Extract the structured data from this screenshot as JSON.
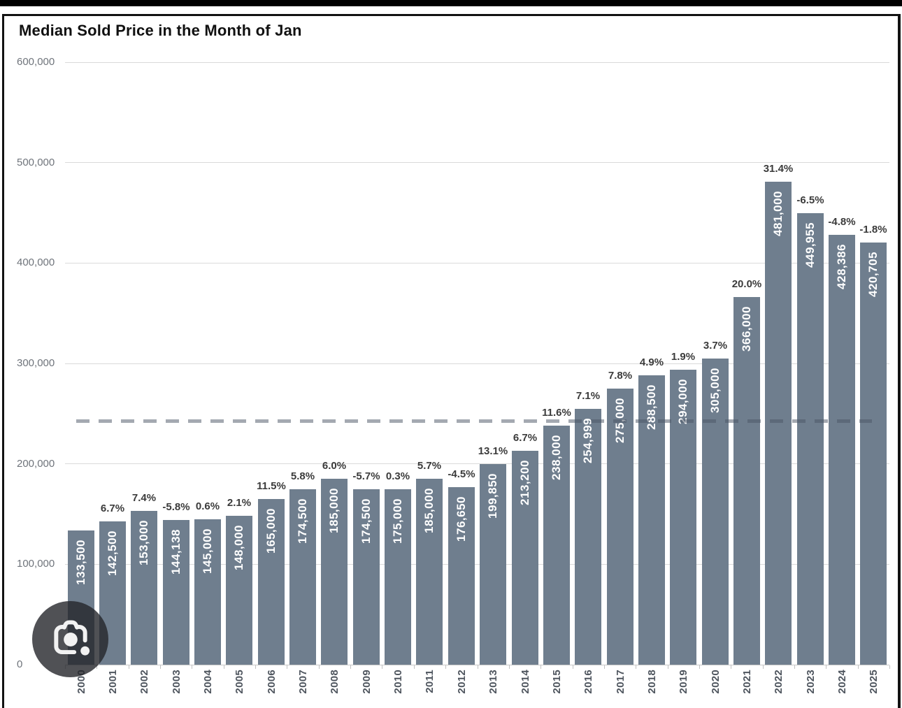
{
  "title": "Median Sold Price in the Month of Jan",
  "chart_data": {
    "type": "bar",
    "title": "Median Sold Price in the Month of Jan",
    "categories": [
      "2000",
      "2001",
      "2002",
      "2003",
      "2004",
      "2005",
      "2006",
      "2007",
      "2008",
      "2009",
      "2010",
      "2011",
      "2012",
      "2013",
      "2014",
      "2015",
      "2016",
      "2017",
      "2018",
      "2019",
      "2020",
      "2021",
      "2022",
      "2023",
      "2024",
      "2025"
    ],
    "values": [
      133500,
      142500,
      153000,
      144138,
      145000,
      148000,
      165000,
      174500,
      185000,
      174500,
      175000,
      185000,
      176650,
      199850,
      213200,
      238000,
      254999,
      275000,
      288500,
      294000,
      305000,
      366000,
      481000,
      449955,
      428386,
      420705
    ],
    "bar_labels": [
      "133,500",
      "142,500",
      "153,000",
      "144,138",
      "145,000",
      "148,000",
      "165,000",
      "174,500",
      "185,000",
      "174,500",
      "175,000",
      "185,000",
      "176,650",
      "199,850",
      "213,200",
      "238,000",
      "254,999",
      "275,000",
      "288,500",
      "294,000",
      "305,000",
      "366,000",
      "481,000",
      "449,955",
      "428,386",
      "420,705"
    ],
    "pct_labels": [
      "",
      "6.7%",
      "7.4%",
      "-5.8%",
      "0.6%",
      "2.1%",
      "11.5%",
      "5.8%",
      "6.0%",
      "-5.7%",
      "0.3%",
      "5.7%",
      "-4.5%",
      "13.1%",
      "6.7%",
      "11.6%",
      "7.1%",
      "7.8%",
      "4.9%",
      "1.9%",
      "3.7%",
      "20.0%",
      "31.4%",
      "-6.5%",
      "-4.8%",
      "-1.8%"
    ],
    "xlabel": "",
    "ylabel": "",
    "ylim": [
      0,
      600000
    ],
    "y_tick_labels": [
      "600,000",
      "500,000",
      "400,000",
      "300,000",
      "200,000",
      "100,000",
      "0"
    ],
    "y_tick_values": [
      600000,
      500000,
      400000,
      300000,
      200000,
      100000,
      0
    ],
    "grid": true,
    "legend": false,
    "reference_line": {
      "style": "dashed",
      "approx_value": 242938
    },
    "colors": {
      "bar": "#6f7e8e",
      "bar_label": "#ffffff",
      "pct_label": "#3b3b3b",
      "grid": "#dadada",
      "dashed_line": "rgba(73,84,100,0.5)",
      "axis_text": "#6f747b",
      "year_text": "#4e555e"
    }
  },
  "overlay": {
    "lens_button_icon": "google-lens-camera-icon"
  }
}
